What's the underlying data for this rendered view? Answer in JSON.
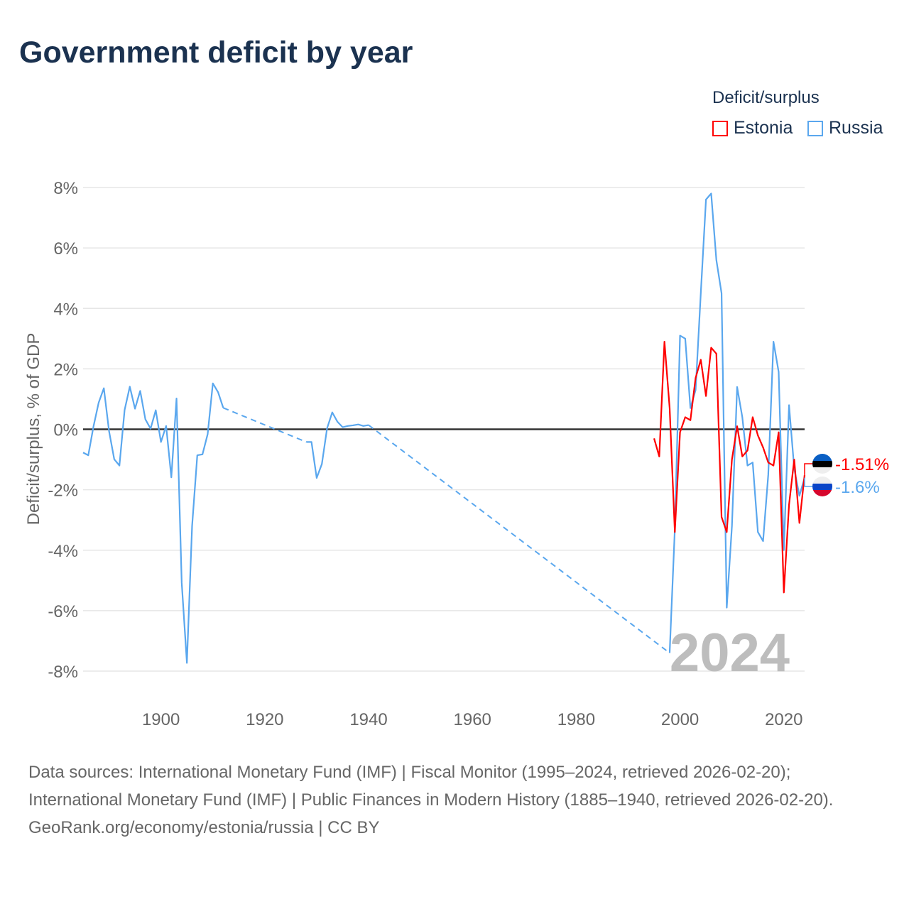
{
  "title": "Government deficit by year",
  "legend": {
    "title": "Deficit/surplus",
    "items": [
      {
        "name": "Estonia",
        "color": "#ff0000"
      },
      {
        "name": "Russia",
        "color": "#5aa7ee"
      }
    ]
  },
  "year_label": "2024",
  "footer": {
    "sources": "Data sources: International Monetary Fund (IMF) | Fiscal Monitor (1995–2024, retrieved 2026-02-20); International Monetary Fund (IMF) | Public Finances in Modern History (1885–1940, retrieved 2026-02-20).",
    "credit": "GeoRank.org/economy/estonia/russia | CC BY"
  },
  "chart_data": {
    "type": "line",
    "title": "Government deficit by year",
    "ylabel": "Deficit/surplus, % of GDP",
    "xlabel": "",
    "xlim": [
      1885,
      2024
    ],
    "ylim": [
      -8,
      8
    ],
    "x_ticks": [
      {
        "v": 1900,
        "label": "1900"
      },
      {
        "v": 1920,
        "label": "1920"
      },
      {
        "v": 1940,
        "label": "1940"
      },
      {
        "v": 1960,
        "label": "1960"
      },
      {
        "v": 1980,
        "label": "1980"
      },
      {
        "v": 2000,
        "label": "2000"
      },
      {
        "v": 2020,
        "label": "2020"
      }
    ],
    "y_ticks": [
      {
        "v": 8,
        "label": "8%"
      },
      {
        "v": 6,
        "label": "6%"
      },
      {
        "v": 4,
        "label": "4%"
      },
      {
        "v": 2,
        "label": "2%"
      },
      {
        "v": 0,
        "label": "0%"
      },
      {
        "v": -2,
        "label": "-2%"
      },
      {
        "v": -4,
        "label": "-4%"
      },
      {
        "v": -6,
        "label": "-6%"
      },
      {
        "v": -8,
        "label": "-8%"
      }
    ],
    "grid": true,
    "series": [
      {
        "name": "Russia",
        "color": "#5aa7ee",
        "end_label": "-1.6%",
        "points": [
          [
            1885,
            -0.77
          ],
          [
            1886,
            -0.86
          ],
          [
            1887,
            0.09
          ],
          [
            1888,
            0.88
          ],
          [
            1889,
            1.36
          ],
          [
            1890,
            -0.06
          ],
          [
            1891,
            -0.99
          ],
          [
            1892,
            -1.2
          ],
          [
            1893,
            0.64
          ],
          [
            1894,
            1.41
          ],
          [
            1895,
            0.68
          ],
          [
            1896,
            1.27
          ],
          [
            1897,
            0.33
          ],
          [
            1898,
            0.02
          ],
          [
            1899,
            0.63
          ],
          [
            1900,
            -0.42
          ],
          [
            1901,
            0.11
          ],
          [
            1902,
            -1.59
          ],
          [
            1903,
            1.02
          ],
          [
            1904,
            -5.08
          ],
          [
            1905,
            -7.73
          ],
          [
            1906,
            -3.2
          ],
          [
            1907,
            -0.86
          ],
          [
            1908,
            -0.83
          ],
          [
            1909,
            -0.16
          ],
          [
            1910,
            1.52
          ],
          [
            1911,
            1.23
          ],
          [
            1912,
            0.71
          ],
          [
            1928,
            -0.42
          ],
          [
            1929,
            -0.42
          ],
          [
            1930,
            -1.61
          ],
          [
            1931,
            -1.15
          ],
          [
            1932,
            0.03
          ],
          [
            1933,
            0.56
          ],
          [
            1934,
            0.25
          ],
          [
            1935,
            0.07
          ],
          [
            1936,
            0.11
          ],
          [
            1937,
            0.13
          ],
          [
            1938,
            0.16
          ],
          [
            1939,
            0.11
          ],
          [
            1940,
            0.14
          ],
          [
            1998,
            -7.4
          ],
          [
            1999,
            -3.3
          ],
          [
            2000,
            3.1
          ],
          [
            2001,
            3.0
          ],
          [
            2002,
            0.7
          ],
          [
            2003,
            1.3
          ],
          [
            2004,
            4.5
          ],
          [
            2005,
            7.6
          ],
          [
            2006,
            7.8
          ],
          [
            2007,
            5.6
          ],
          [
            2008,
            4.5
          ],
          [
            2009,
            -5.9
          ],
          [
            2010,
            -3.2
          ],
          [
            2011,
            1.4
          ],
          [
            2012,
            0.4
          ],
          [
            2013,
            -1.2
          ],
          [
            2014,
            -1.1
          ],
          [
            2015,
            -3.4
          ],
          [
            2016,
            -3.7
          ],
          [
            2017,
            -1.5
          ],
          [
            2018,
            2.9
          ],
          [
            2019,
            1.9
          ],
          [
            2020,
            -4.0
          ],
          [
            2021,
            0.8
          ],
          [
            2022,
            -1.3
          ],
          [
            2023,
            -2.2
          ],
          [
            2024,
            -1.6
          ]
        ]
      },
      {
        "name": "Estonia",
        "color": "#ff0000",
        "end_label": "-1.51%",
        "points": [
          [
            1995,
            -0.3
          ],
          [
            1996,
            -0.9
          ],
          [
            1997,
            2.9
          ],
          [
            1998,
            0.7
          ],
          [
            1999,
            -3.4
          ],
          [
            2000,
            -0.1
          ],
          [
            2001,
            0.4
          ],
          [
            2002,
            0.3
          ],
          [
            2003,
            1.7
          ],
          [
            2004,
            2.3
          ],
          [
            2005,
            1.1
          ],
          [
            2006,
            2.7
          ],
          [
            2007,
            2.5
          ],
          [
            2008,
            -2.9
          ],
          [
            2009,
            -3.4
          ],
          [
            2010,
            -1.0
          ],
          [
            2011,
            0.1
          ],
          [
            2012,
            -0.9
          ],
          [
            2013,
            -0.7
          ],
          [
            2014,
            0.4
          ],
          [
            2015,
            -0.2
          ],
          [
            2016,
            -0.6
          ],
          [
            2017,
            -1.1
          ],
          [
            2018,
            -1.2
          ],
          [
            2019,
            -0.1
          ],
          [
            2020,
            -5.4
          ],
          [
            2021,
            -2.5
          ],
          [
            2022,
            -1.0
          ],
          [
            2023,
            -3.1
          ],
          [
            2024,
            -1.51
          ]
        ]
      }
    ]
  }
}
